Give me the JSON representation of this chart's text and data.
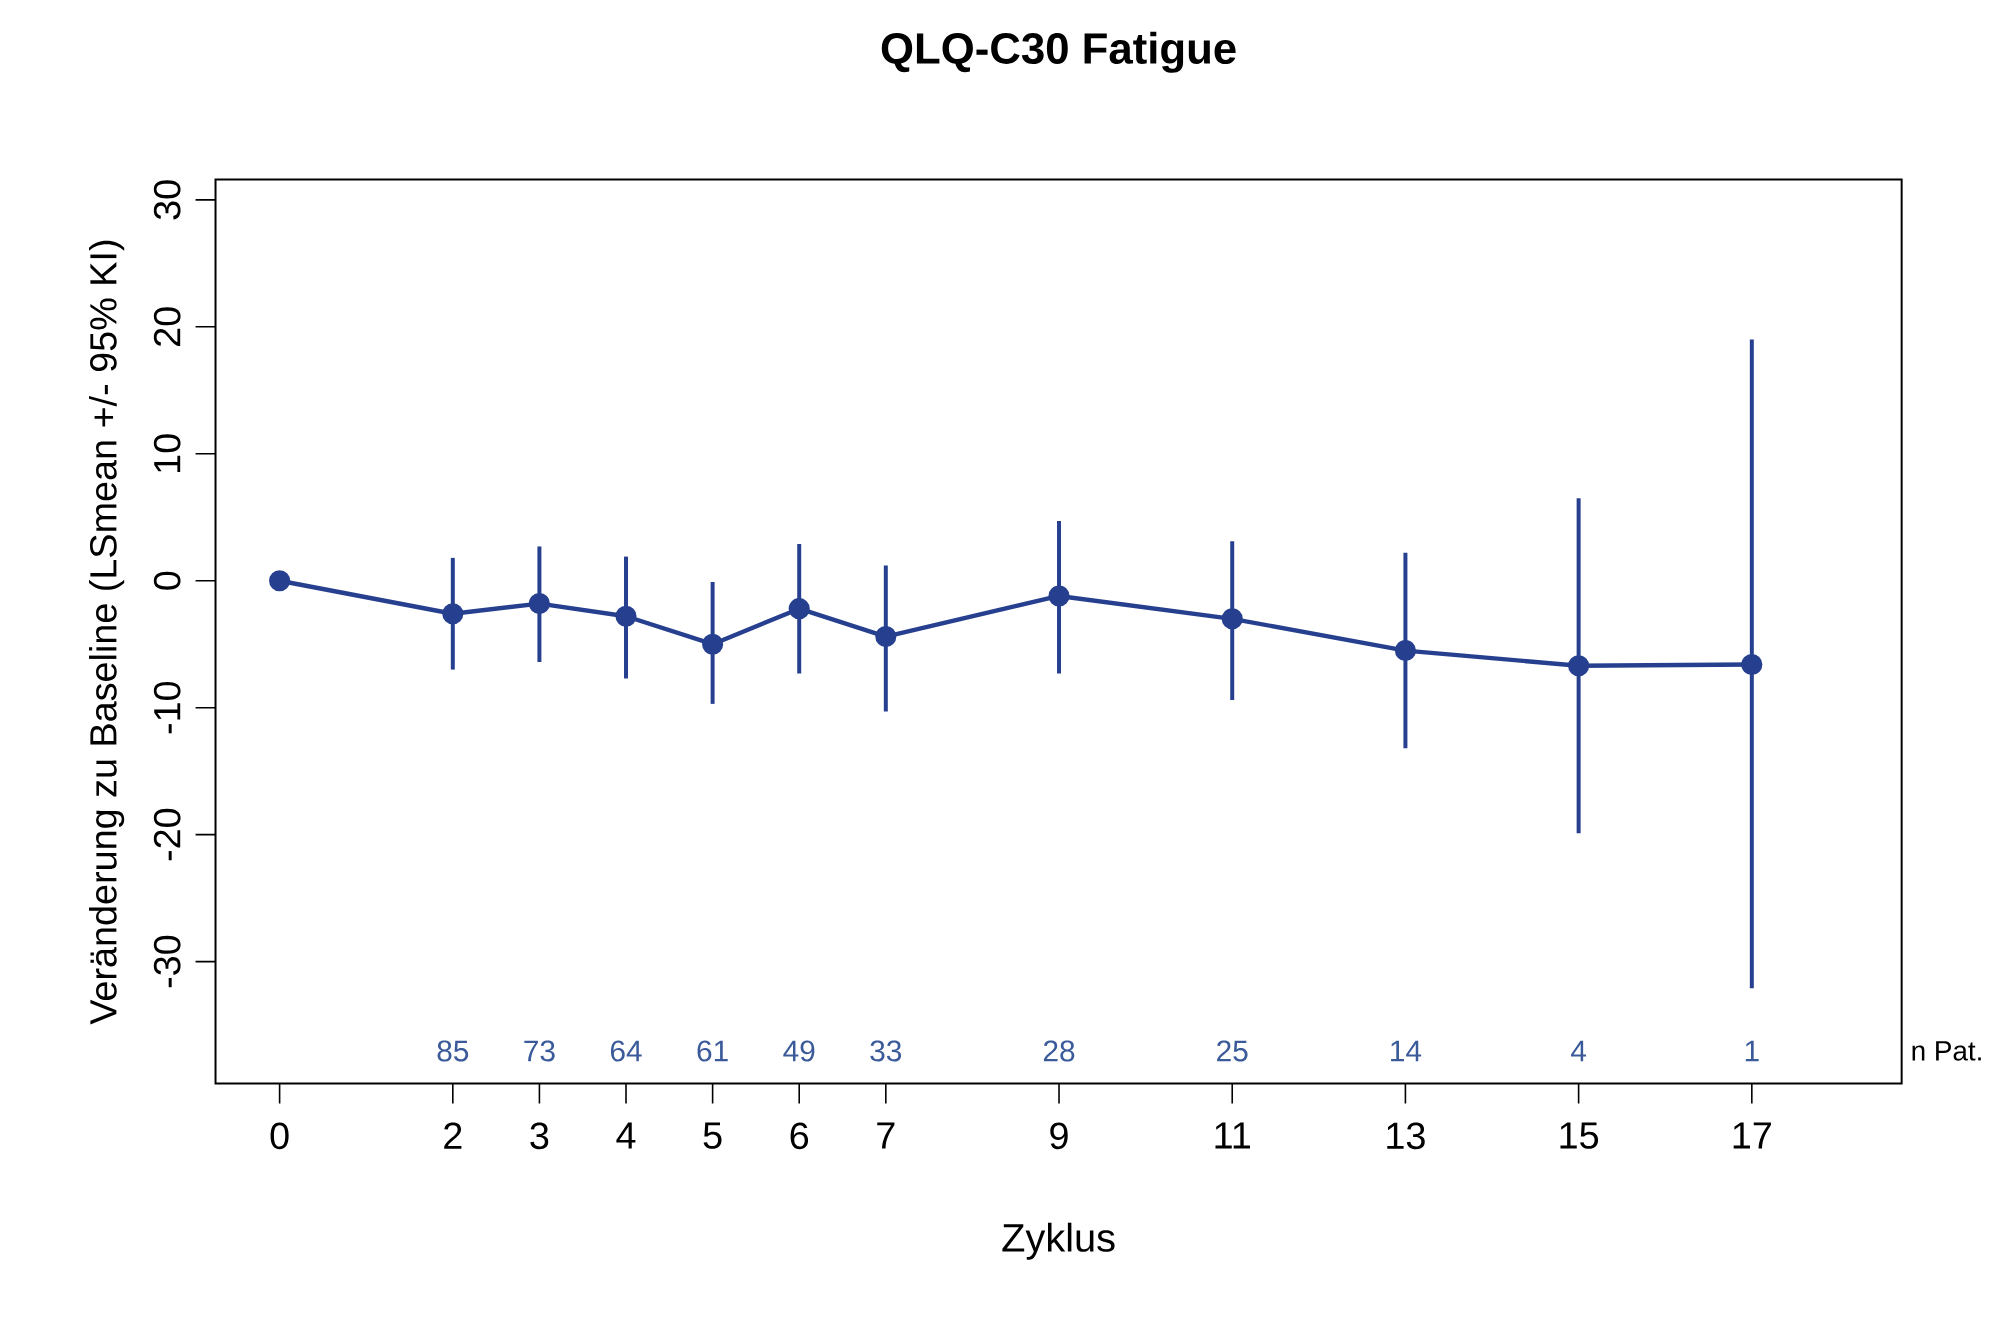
{
  "chart_data": {
    "type": "line",
    "title": "QLQ-C30 Fatigue",
    "xlabel": "Zyklus",
    "ylabel": "Veränderung zu Baseline (LSmean +/- 95% KI)",
    "x": [
      0,
      2,
      3,
      4,
      5,
      6,
      7,
      9,
      11,
      13,
      15,
      17
    ],
    "series": [
      {
        "color": "#26408f",
        "values": [
          0,
          -2.6,
          -1.8,
          -2.8,
          -5.0,
          -2.2,
          -4.4,
          -1.2,
          -3.0,
          -5.5,
          -6.7,
          -6.6
        ],
        "errors": [
          null,
          [
            -7.0,
            1.8
          ],
          [
            -6.4,
            2.7
          ],
          [
            -7.7,
            1.9
          ],
          [
            -9.7,
            -0.1
          ],
          [
            -7.3,
            2.9
          ],
          [
            -10.3,
            1.2
          ],
          [
            -7.3,
            4.7
          ],
          [
            -9.4,
            3.1
          ],
          [
            -13.2,
            2.2
          ],
          [
            -19.9,
            6.5
          ],
          [
            -32.1,
            19.0
          ]
        ]
      }
    ],
    "marker": "circle",
    "line_style": "solid",
    "grid": false,
    "xlim": [
      -0.74,
      18.73
    ],
    "ylim": [
      -39.6,
      31.6
    ],
    "xticks": [
      0,
      2,
      3,
      4,
      5,
      6,
      7,
      9,
      11,
      13,
      15,
      17
    ],
    "yticks": [
      -30,
      -20,
      -10,
      0,
      10,
      20,
      30
    ],
    "annotations": [
      "85",
      "73",
      "64",
      "61",
      "49",
      "33",
      "28",
      "25",
      "14",
      "4",
      "1",
      "n Pat."
    ]
  }
}
